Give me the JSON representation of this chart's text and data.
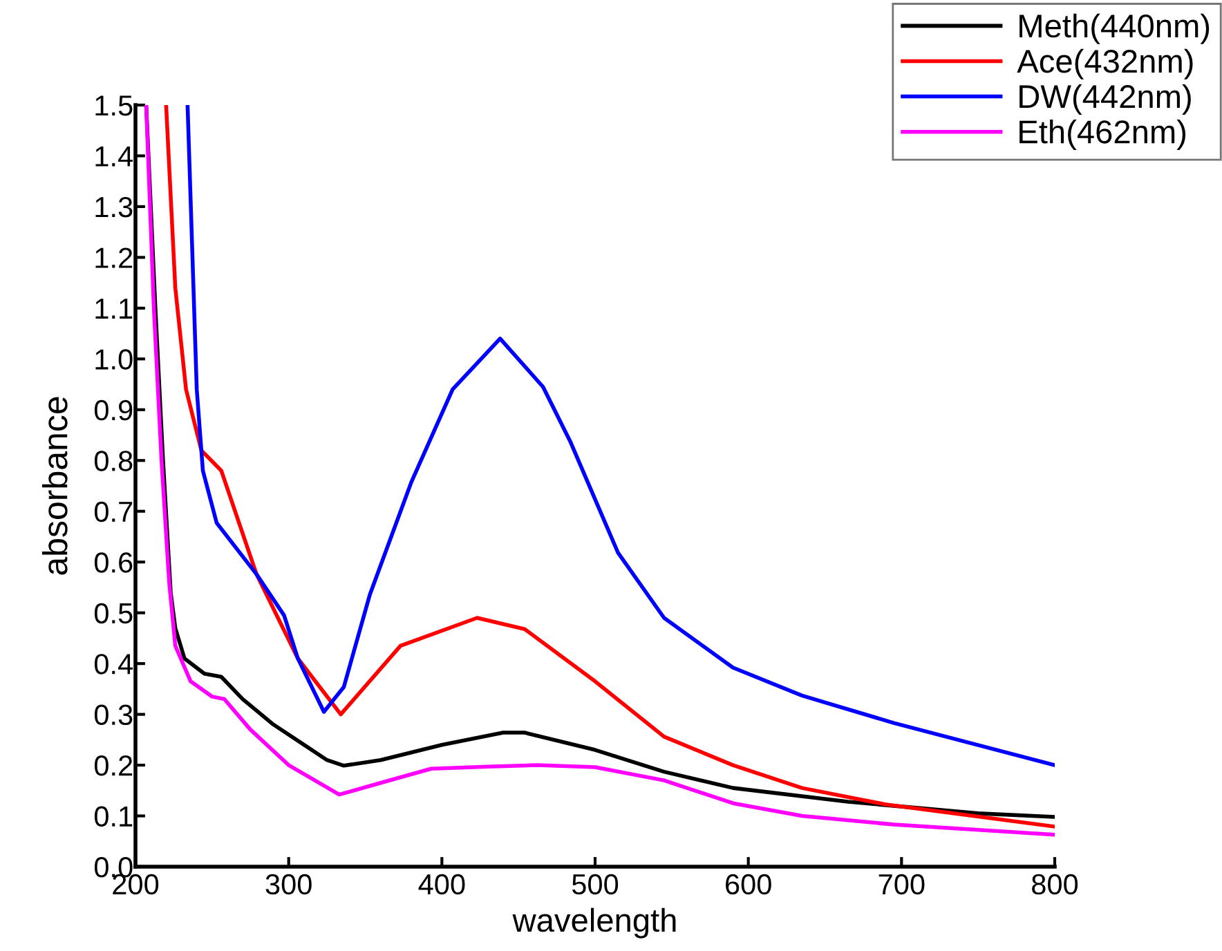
{
  "chart_data": {
    "type": "line",
    "xlabel": "wavelength",
    "ylabel": "absorbance",
    "xlim": [
      200,
      800
    ],
    "ylim": [
      0,
      1.5
    ],
    "xticks": [
      200,
      300,
      400,
      500,
      600,
      700,
      800
    ],
    "yticks": [
      {
        "value": 0,
        "label": "0.0"
      },
      {
        "value": 0.1,
        "label": "0.1"
      },
      {
        "value": 0.2,
        "label": "0.2"
      },
      {
        "value": 0.3,
        "label": "0.3"
      },
      {
        "value": 0.4,
        "label": "0.4"
      },
      {
        "value": 0.5,
        "label": "0.5"
      },
      {
        "value": 0.6,
        "label": "0.6"
      },
      {
        "value": 0.7,
        "label": "0.7"
      },
      {
        "value": 0.8,
        "label": "0.8"
      },
      {
        "value": 0.9,
        "label": "0.9"
      },
      {
        "value": 1.0,
        "label": "1.0"
      },
      {
        "value": 1.1,
        "label": "1.1"
      },
      {
        "value": 1.2,
        "label": "1.2"
      },
      {
        "value": 1.3,
        "label": "1.3"
      },
      {
        "value": 1.4,
        "label": "1.4"
      },
      {
        "value": 1.5,
        "label": "1.5"
      }
    ],
    "grid": false,
    "legend": "top right",
    "marker": "none",
    "line_style": "solid",
    "series": [
      {
        "name": "Meth(440nm)",
        "color": "#000000",
        "x": [
          207,
          213,
          218,
          223,
          226,
          232,
          245,
          256,
          270,
          290,
          310,
          325,
          336,
          360,
          400,
          440,
          454,
          500,
          545,
          590,
          665,
          750,
          800
        ],
        "values": [
          1.5,
          1.1,
          0.8,
          0.54,
          0.47,
          0.41,
          0.38,
          0.374,
          0.33,
          0.28,
          0.24,
          0.21,
          0.199,
          0.21,
          0.24,
          0.264,
          0.264,
          0.23,
          0.187,
          0.155,
          0.128,
          0.105,
          0.098
        ]
      },
      {
        "name": "Ace(432nm)",
        "color": "#ff0000",
        "x": [
          220,
          226,
          233,
          243,
          256,
          279,
          306,
          334,
          373,
          423,
          454,
          500,
          545,
          590,
          635,
          689,
          800
        ],
        "values": [
          1.5,
          1.14,
          0.94,
          0.82,
          0.78,
          0.576,
          0.41,
          0.3,
          0.435,
          0.49,
          0.468,
          0.365,
          0.256,
          0.2,
          0.155,
          0.123,
          0.079
        ]
      },
      {
        "name": "DW(442nm)",
        "color": "#0000ff",
        "x": [
          234,
          240,
          244,
          253,
          279,
          297,
          306,
          323,
          336,
          353,
          380,
          407,
          438,
          466,
          484,
          515,
          545,
          590,
          635,
          695,
          800
        ],
        "values": [
          1.5,
          0.94,
          0.78,
          0.677,
          0.576,
          0.495,
          0.41,
          0.305,
          0.354,
          0.536,
          0.757,
          0.94,
          1.04,
          0.945,
          0.836,
          0.618,
          0.49,
          0.392,
          0.337,
          0.283,
          0.2
        ]
      },
      {
        "name": "Eth(462nm)",
        "color": "#ff00ff",
        "x": [
          207,
          212,
          217,
          222,
          226,
          236,
          250,
          258,
          275,
          300,
          333,
          360,
          393,
          430,
          462,
          500,
          545,
          590,
          635,
          695,
          800
        ],
        "values": [
          1.5,
          1.1,
          0.8,
          0.56,
          0.435,
          0.365,
          0.335,
          0.33,
          0.27,
          0.2,
          0.142,
          0.165,
          0.193,
          0.197,
          0.2,
          0.196,
          0.17,
          0.125,
          0.1,
          0.083,
          0.063
        ]
      }
    ]
  }
}
